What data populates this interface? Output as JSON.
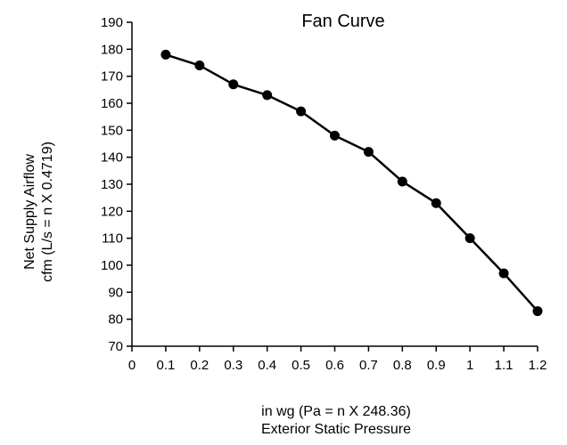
{
  "chart_data": {
    "type": "line",
    "title": "Fan Curve",
    "xlabel_line1": "in wg (Pa = n X 248.36)",
    "xlabel_line2": "Exterior Static Pressure",
    "ylabel_line1": "Net Supply Airflow",
    "ylabel_line2": "cfm (L/s = n X 0.4719)",
    "xlim": [
      0,
      1.2
    ],
    "ylim": [
      70,
      190
    ],
    "x_ticks": [
      "0",
      "0.1",
      "0.2",
      "0.3",
      "0.4",
      "0.5",
      "0.6",
      "0.7",
      "0.8",
      "0.9",
      "1",
      "1.1",
      "1.2"
    ],
    "y_ticks": [
      "70",
      "80",
      "90",
      "100",
      "110",
      "120",
      "130",
      "140",
      "150",
      "160",
      "170",
      "180",
      "190"
    ],
    "grid": false,
    "legend": "none",
    "series": [
      {
        "x": [
          0.1,
          0.2,
          0.3,
          0.4,
          0.5,
          0.6,
          0.7,
          0.8,
          0.9,
          1.0,
          1.1,
          1.2
        ],
        "values": [
          178,
          174,
          167,
          163,
          157,
          148,
          142,
          131,
          123,
          110,
          97,
          83
        ],
        "color": "#000000"
      }
    ]
  }
}
